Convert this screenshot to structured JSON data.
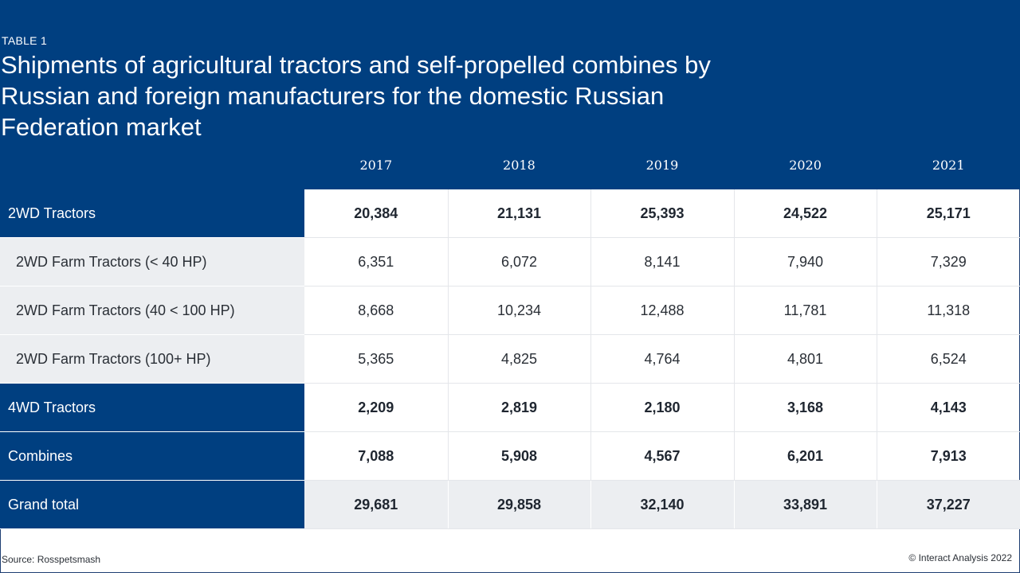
{
  "header": {
    "table_label": "TABLE 1",
    "title": "Shipments of agricultural tractors and self-propelled combines by Russian and foreign manufacturers for the domestic Russian Federation market"
  },
  "colors": {
    "header_bg": "#003f80",
    "row_shade": "#eceef1"
  },
  "footer": {
    "source": "Source: Rosspetsmash",
    "copyright": "© Interact Analysis 2022"
  },
  "chart_data": {
    "type": "table",
    "title": "Shipments of agricultural tractors and self-propelled combines by Russian and foreign manufacturers for the domestic Russian Federation market",
    "columns": [
      "2017",
      "2018",
      "2019",
      "2020",
      "2021"
    ],
    "rows": [
      {
        "label": "2WD Tractors",
        "level": "main",
        "values": [
          "20,384",
          "21,131",
          "25,393",
          "24,522",
          "25,171"
        ]
      },
      {
        "label": "2WD Farm Tractors (< 40 HP)",
        "level": "sub",
        "values": [
          "6,351",
          "6,072",
          "8,141",
          "7,940",
          "7,329"
        ]
      },
      {
        "label": "2WD Farm Tractors (40 < 100 HP)",
        "level": "sub",
        "values": [
          "8,668",
          "10,234",
          "12,488",
          "11,781",
          "11,318"
        ]
      },
      {
        "label": "2WD Farm Tractors (100+ HP)",
        "level": "sub",
        "values": [
          "5,365",
          "4,825",
          "4,764",
          "4,801",
          "6,524"
        ]
      },
      {
        "label": "4WD Tractors",
        "level": "main",
        "values": [
          "2,209",
          "2,819",
          "2,180",
          "3,168",
          "4,143"
        ]
      },
      {
        "label": "Combines",
        "level": "main",
        "values": [
          "7,088",
          "5,908",
          "4,567",
          "6,201",
          "7,913"
        ]
      },
      {
        "label": "Grand total",
        "level": "total",
        "values": [
          "29,681",
          "29,858",
          "32,140",
          "33,891",
          "37,227"
        ]
      }
    ]
  }
}
